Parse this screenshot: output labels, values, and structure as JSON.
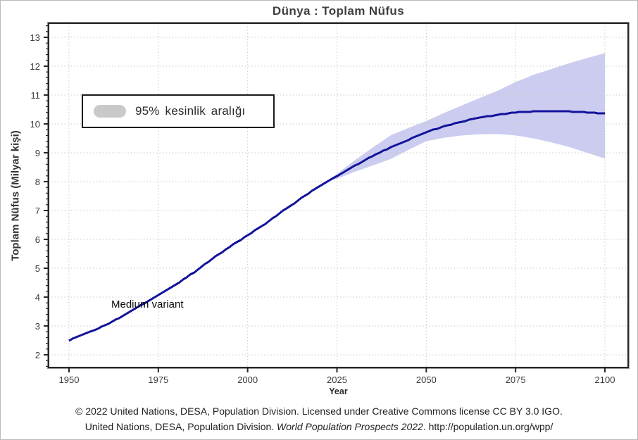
{
  "title": "Dünya : Toplam Nüfus",
  "legend": {
    "label": "95% kesinlik aralığı",
    "swatch_color": "#c9c9c9"
  },
  "annotation": "Medium variant",
  "axes": {
    "x_title": "Year",
    "y_title": "Toplam Nüfus (Milyar kişi)"
  },
  "footer": {
    "line1": "© 2022 United Nations, DESA, Population Division. Licensed under Creative Commons license CC BY 3.0 IGO.",
    "line2_prefix": "United Nations, DESA, Population Division. ",
    "line2_italic": "World Population Prospects 2022",
    "line2_suffix": ". http://population.un.org/wpp/"
  },
  "chart_data": {
    "type": "line",
    "title": "Dünya : Toplam Nüfus",
    "xlabel": "Year",
    "ylabel": "Toplam Nüfus (Milyar kişi)",
    "x_ticks": [
      1950,
      1975,
      2000,
      2025,
      2050,
      2075,
      2100
    ],
    "y_ticks": [
      2,
      3,
      4,
      5,
      6,
      7,
      8,
      9,
      10,
      11,
      12,
      13
    ],
    "xlim": [
      1944.3,
      2106.5
    ],
    "ylim": [
      1.56,
      13.49
    ],
    "grid": "dotted",
    "legend_position": "upper-left",
    "colors": {
      "line": "#13139b",
      "band": "#ccccf0",
      "grid": "#c9c9c9",
      "axis": "#262626"
    },
    "series": [
      {
        "name": "Medium variant",
        "x": [
          1950,
          1955,
          1960,
          1965,
          1970,
          1975,
          1980,
          1985,
          1990,
          1995,
          2000,
          2005,
          2010,
          2015,
          2020,
          2022,
          2025,
          2030,
          2035,
          2040,
          2045,
          2050,
          2055,
          2060,
          2065,
          2070,
          2075,
          2080,
          2085,
          2090,
          2095,
          2100
        ],
        "y": [
          2.5,
          2.75,
          3.02,
          3.34,
          3.7,
          4.07,
          4.44,
          4.86,
          5.32,
          5.74,
          6.15,
          6.54,
          6.99,
          7.43,
          7.84,
          7.98,
          8.19,
          8.55,
          8.89,
          9.19,
          9.45,
          9.71,
          9.92,
          10.08,
          10.22,
          10.32,
          10.4,
          10.43,
          10.43,
          10.43,
          10.4,
          10.36
        ]
      }
    ],
    "interval": {
      "name": "95% kesinlik aralığı",
      "x": [
        2022,
        2025,
        2030,
        2035,
        2040,
        2045,
        2050,
        2055,
        2060,
        2065,
        2070,
        2075,
        2080,
        2085,
        2090,
        2095,
        2100
      ],
      "lower": [
        7.98,
        8.1,
        8.34,
        8.56,
        8.78,
        9.1,
        9.4,
        9.52,
        9.6,
        9.64,
        9.65,
        9.6,
        9.5,
        9.36,
        9.2,
        9.0,
        8.8
      ],
      "upper": [
        7.98,
        8.27,
        8.74,
        9.18,
        9.6,
        9.86,
        10.1,
        10.38,
        10.64,
        10.9,
        11.15,
        11.45,
        11.7,
        11.9,
        12.1,
        12.28,
        12.45
      ]
    }
  }
}
